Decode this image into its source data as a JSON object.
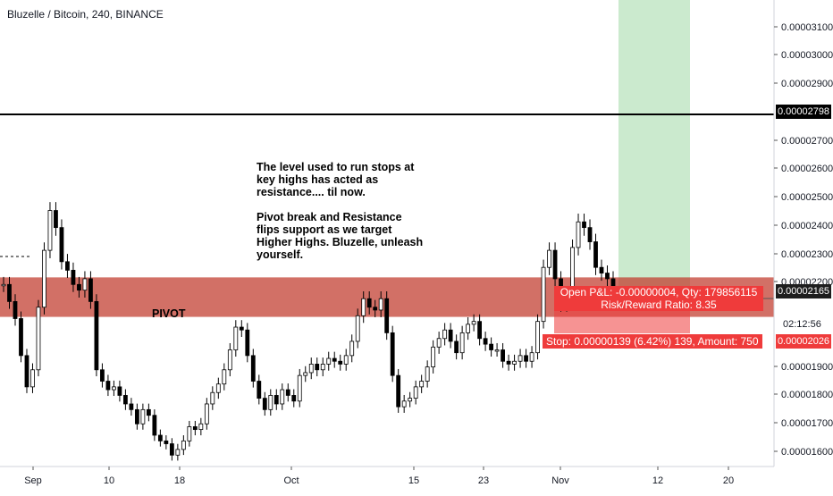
{
  "header": {
    "title": "Bluzelle / Bitcoin, 240, BINANCE"
  },
  "annotation": {
    "paragraph1": "The level used to run stops at key highs has acted as resistance.... til now.",
    "paragraph2": "Pivot break and Resistance flips support as we target Higher Highs. Bluzelle, unleash yourself."
  },
  "pivot_label": "PIVOT",
  "position": {
    "entry_line": "Open P&L: -0.00000004, Qty: 179856115",
    "rr_line": "Risk/Reward Ratio: 8.35",
    "stop_line": "Stop: 0.00000139 (6.42%) 139, Amount: 750"
  },
  "price_tags": {
    "resistance": "0.00002798",
    "current": "0.00002165",
    "countdown": "02:12:56",
    "stop": "0.00002026"
  },
  "colors": {
    "up": "#000000",
    "down": "#000000",
    "pivot_zone": "#c0392b",
    "target_zone": "#a8dcae",
    "stop_zone": "#ef3b3b",
    "resistance_line": "#000000",
    "axis_text": "#131722"
  },
  "chart_data": {
    "type": "candlestick",
    "title": "Bluzelle / Bitcoin, 240, BINANCE",
    "x_ticks": [
      "Sep",
      "10",
      "18",
      "Oct",
      "15",
      "23",
      "Nov",
      "12",
      "20"
    ],
    "y_ticks": [
      "0.00003100",
      "0.00003000",
      "0.00002900",
      "0.00002700",
      "0.00002600",
      "0.00002500",
      "0.00002400",
      "0.00002300",
      "0.00002200",
      "0.00001900",
      "0.00001800",
      "0.00001700",
      "0.00001600"
    ],
    "ylim": [
      1.56e-05,
      3.2e-05
    ],
    "resistance_level": 2.798e-05,
    "pivot_zone": [
      2.13e-05,
      2.25e-05
    ],
    "entry": 2.165e-05,
    "stop": 2.026e-05,
    "target_zone": [
      2.2e-05,
      3.2e-05
    ],
    "series": [
      {
        "values": [
          2.2e-05,
          2.14e-05,
          2.08e-05,
          1.95e-05,
          1.84e-05,
          1.9e-05,
          2.12e-05,
          2.32e-05,
          2.46e-05,
          2.4e-05,
          2.28e-05,
          2.25e-05,
          2.2e-05,
          2.18e-05,
          2.22e-05,
          2.14e-05,
          1.9e-05,
          1.86e-05,
          1.83e-05,
          1.84e-05,
          1.81e-05,
          1.78e-05,
          1.76e-05,
          1.71e-05,
          1.76e-05,
          1.74e-05,
          1.67e-05,
          1.65e-05,
          1.64e-05,
          1.6e-05,
          1.62e-05,
          1.65e-05,
          1.7e-05,
          1.69e-05,
          1.71e-05,
          1.78e-05,
          1.82e-05,
          1.85e-05,
          1.9e-05,
          1.97e-05,
          2.05e-05,
          2.04e-05,
          1.95e-05,
          1.86e-05,
          1.8e-05,
          1.76e-05,
          1.81e-05,
          1.78e-05,
          1.83e-05,
          1.81e-05,
          1.79e-05,
          1.88e-05,
          1.89e-05,
          1.92e-05,
          1.9e-05,
          1.92e-05,
          1.94e-05,
          1.93e-05,
          1.92e-05,
          1.95e-05,
          2e-05,
          2.09e-05,
          2.15e-05,
          2.12e-05,
          2.11e-05,
          2.15e-05,
          2.03e-05,
          1.88e-05,
          1.77e-05,
          1.79e-05,
          1.8e-05,
          1.84e-05,
          1.86e-05,
          1.91e-05,
          1.98e-05,
          2.01e-05,
          2.04e-05,
          2e-05,
          1.96e-05,
          2.03e-05,
          2.06e-05,
          2.07e-05,
          2.01e-05,
          1.99e-05,
          1.97e-05,
          1.97e-05,
          1.93e-05,
          1.92e-05,
          1.93e-05,
          1.95e-05,
          1.93e-05,
          1.96e-05,
          2.07e-05,
          2.26e-05,
          2.32e-05,
          2.22e-05,
          2.13e-05,
          2.16e-05,
          2.33e-05,
          2.42e-05,
          2.4e-05,
          2.35e-05,
          2.26e-05,
          2.24e-05,
          2.22e-05,
          2.16e-05
        ]
      }
    ]
  }
}
